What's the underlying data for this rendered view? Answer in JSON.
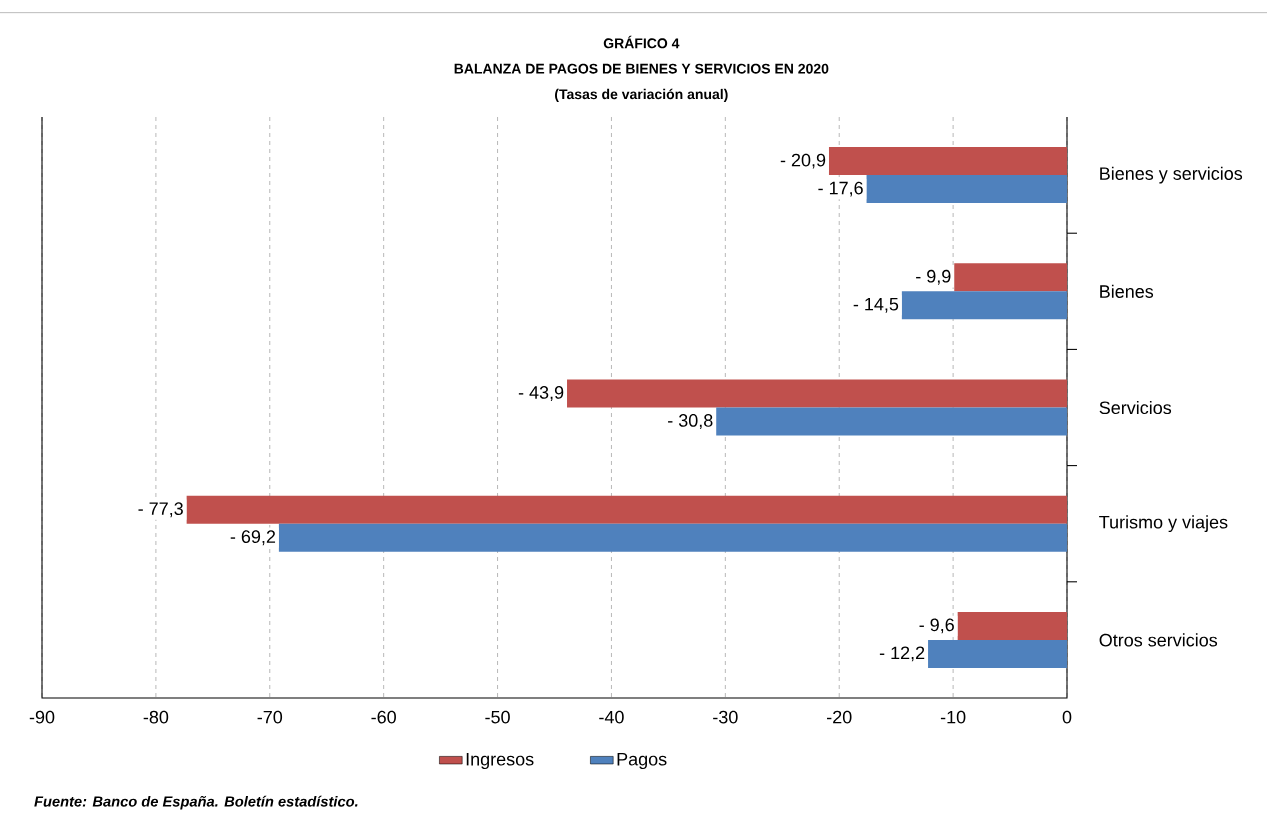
{
  "chart_data": {
    "type": "bar",
    "orientation": "horizontal",
    "title": "GRÁFICO 4",
    "subtitle": "BALANZA DE PAGOS DE BIENES Y SERVICIOS EN 2020",
    "annotations": [
      "(Tasas de variación anual)",
      "Fuente: Banco de España. Boletín estadístico."
    ],
    "categories": [
      "Bienes y servicios",
      "Bienes",
      "Servicios",
      "Turismo y viajes",
      "Otros servicios"
    ],
    "series": [
      {
        "name": "Ingresos",
        "color": "#c0504d",
        "values": [
          -20.9,
          -9.9,
          -43.9,
          -77.3,
          -9.6
        ],
        "value_labels": [
          "- 20,9",
          "- 9,9",
          "- 43,9",
          "- 77,3",
          "- 9,6"
        ]
      },
      {
        "name": "Pagos",
        "color": "#4f81bd",
        "values": [
          -17.6,
          -14.5,
          -30.8,
          -69.2,
          -12.2
        ],
        "value_labels": [
          "- 17,6",
          "- 14,5",
          "- 30,8",
          "- 69,2",
          "- 12,2"
        ]
      }
    ],
    "xlim": [
      -90,
      0
    ],
    "xticks": [
      -90,
      -80,
      -70,
      -60,
      -50,
      -40,
      -30,
      -20,
      -10,
      0
    ],
    "grid": "x",
    "legend": "bottom"
  }
}
